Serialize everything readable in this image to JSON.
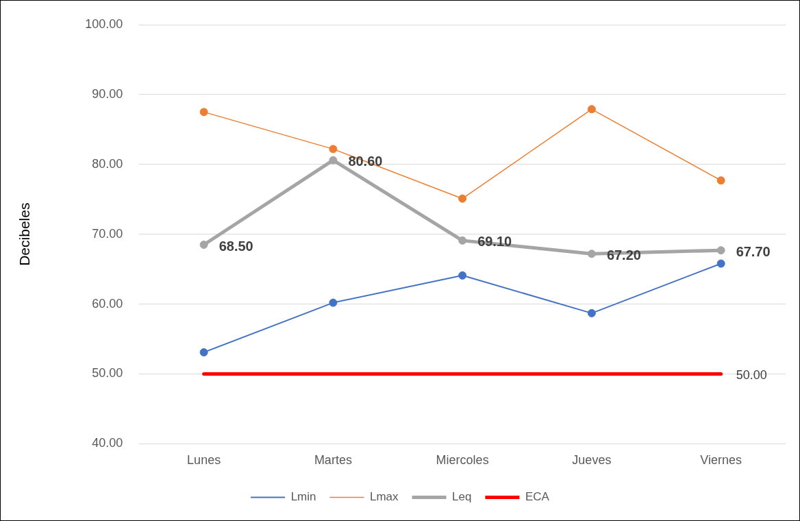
{
  "chart_data": {
    "type": "line",
    "ylabel": "Decibeles",
    "categories": [
      "Lunes",
      "Martes",
      "Miercoles",
      "Jueves",
      "Viernes"
    ],
    "series": [
      {
        "name": "Lmin",
        "color": "#4472c4",
        "values": [
          53.1,
          60.2,
          64.1,
          58.7,
          65.8
        ],
        "marker": "circle"
      },
      {
        "name": "Lmax",
        "color": "#ed7d31",
        "values": [
          87.5,
          82.2,
          75.1,
          87.9,
          77.7
        ],
        "marker": "circle"
      },
      {
        "name": "Leq",
        "color": "#a5a5a5",
        "values": [
          68.5,
          80.6,
          69.1,
          67.2,
          67.7
        ],
        "marker": "circle",
        "value_labels": [
          "68.50",
          "80.60",
          "69.10",
          "67.20",
          "67.70"
        ]
      },
      {
        "name": "ECA",
        "color": "#ff0000",
        "values": [
          50,
          50,
          50,
          50,
          50
        ],
        "marker": "none",
        "value_labels": [
          null,
          null,
          null,
          null,
          "50.00"
        ]
      }
    ],
    "ylim": [
      40,
      100
    ],
    "yticks": [
      {
        "value": 40,
        "label": "40.00"
      },
      {
        "value": 50,
        "label": "50.00"
      },
      {
        "value": 60,
        "label": "60.00"
      },
      {
        "value": 70,
        "label": "70.00"
      },
      {
        "value": 80,
        "label": "80.00"
      },
      {
        "value": 90,
        "label": "90.00"
      },
      {
        "value": 100,
        "label": "100.00"
      }
    ],
    "grid": "y",
    "legend": "bottom"
  }
}
